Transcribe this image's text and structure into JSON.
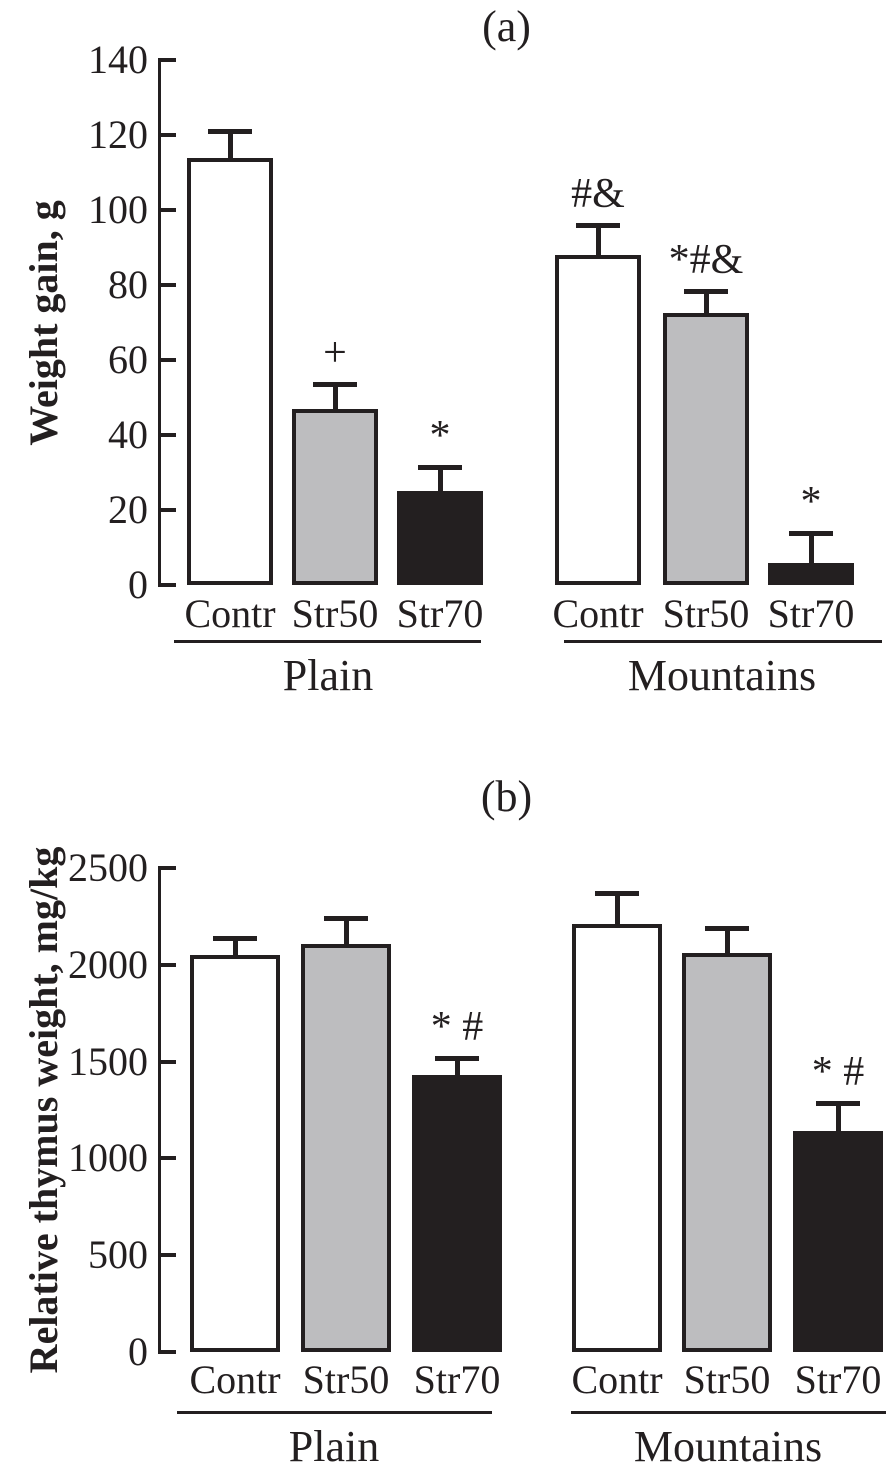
{
  "colors": {
    "ink": "#231f20",
    "bar_fill_white": "#ffffff",
    "bar_fill_gray": "#bdbdbf",
    "bar_fill_black": "#231f20"
  },
  "chart_data": [
    {
      "type": "bar",
      "panel": "(a)",
      "ylabel": "Weight gain, g",
      "ylim": [
        0,
        140
      ],
      "ytick_step": 20,
      "yticks": [
        140,
        120,
        100,
        80,
        60,
        40,
        20,
        0
      ],
      "ytick_labels": [
        "140",
        "120",
        "100",
        "80",
        "60",
        "40",
        "20",
        "0"
      ],
      "categories": [
        "Contr",
        "Str50",
        "Str70"
      ],
      "group_labels": [
        "Plain",
        "Mountains"
      ],
      "bar_styles": [
        "white",
        "gray",
        "black"
      ],
      "grid": false,
      "legend": "none",
      "series": [
        {
          "group": "Plain",
          "values": [
            114,
            47,
            25
          ],
          "errors": [
            7,
            6.5,
            6.5
          ],
          "annotations": [
            "",
            "+",
            "*"
          ]
        },
        {
          "group": "Mountains",
          "values": [
            88,
            72.5,
            6
          ],
          "errors": [
            8,
            6,
            8
          ],
          "annotations": [
            "#&",
            "*#&",
            "*"
          ]
        }
      ]
    },
    {
      "type": "bar",
      "panel": "(b)",
      "ylabel": "Relative thymus weight, mg/kg",
      "ylim": [
        0,
        2500
      ],
      "ytick_step": 500,
      "yticks": [
        2500,
        2000,
        1500,
        1000,
        500,
        0
      ],
      "ytick_labels": [
        "2500",
        "2000",
        "1500",
        "1000",
        "500",
        "0"
      ],
      "categories": [
        "Contr",
        "Str50",
        "Str70"
      ],
      "group_labels": [
        "Plain",
        "Mountains"
      ],
      "bar_styles": [
        "white",
        "gray",
        "black"
      ],
      "grid": false,
      "legend": "none",
      "series": [
        {
          "group": "Plain",
          "values": [
            2050,
            2110,
            1430
          ],
          "errors": [
            90,
            130,
            90
          ],
          "annotations": [
            "",
            "",
            "* #"
          ]
        },
        {
          "group": "Mountains",
          "values": [
            2210,
            2060,
            1140
          ],
          "errors": [
            160,
            130,
            145
          ],
          "annotations": [
            "",
            "",
            "* #"
          ]
        }
      ]
    }
  ]
}
